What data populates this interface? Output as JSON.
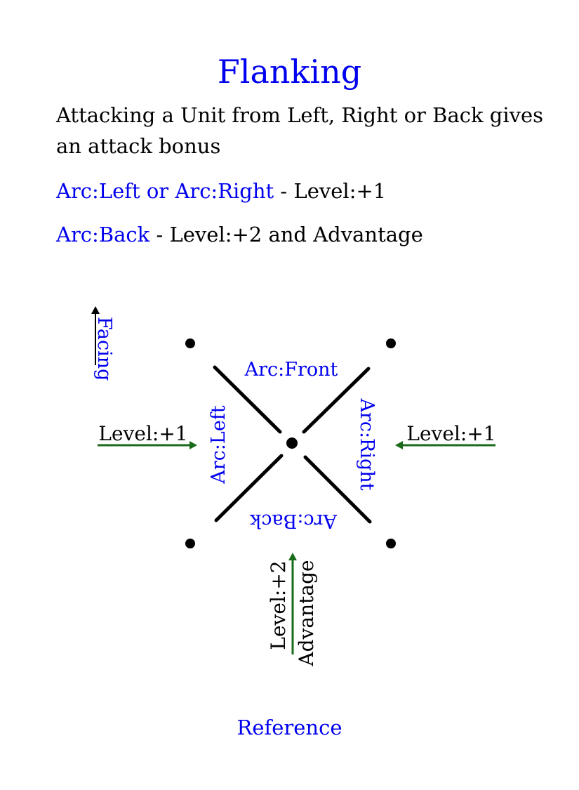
{
  "title": "Flanking",
  "intro": "Attacking a Unit from Left, Right or Back gives an attack bonus",
  "rule1": {
    "arcs": "Arc:Left or Arc:Right",
    "sep": " - ",
    "effect": "Level:+1"
  },
  "rule2": {
    "arcs": "Arc:Back",
    "sep": " - ",
    "effect": "Level:+2 and Advantage"
  },
  "diagram": {
    "facing": "Facing",
    "arc_front": "Arc:Front",
    "arc_left": "Arc:Left",
    "arc_right": "Arc:Right",
    "arc_back": "Arc:Back",
    "left_bonus": "Level:+1",
    "right_bonus": "Level:+1",
    "back_bonus_1": "Level:+2",
    "back_bonus_2": "Advantage"
  },
  "footer": "Reference",
  "colors": {
    "accent": "#0000ee",
    "arrow": "#1a6b1a",
    "ink": "#000000"
  }
}
